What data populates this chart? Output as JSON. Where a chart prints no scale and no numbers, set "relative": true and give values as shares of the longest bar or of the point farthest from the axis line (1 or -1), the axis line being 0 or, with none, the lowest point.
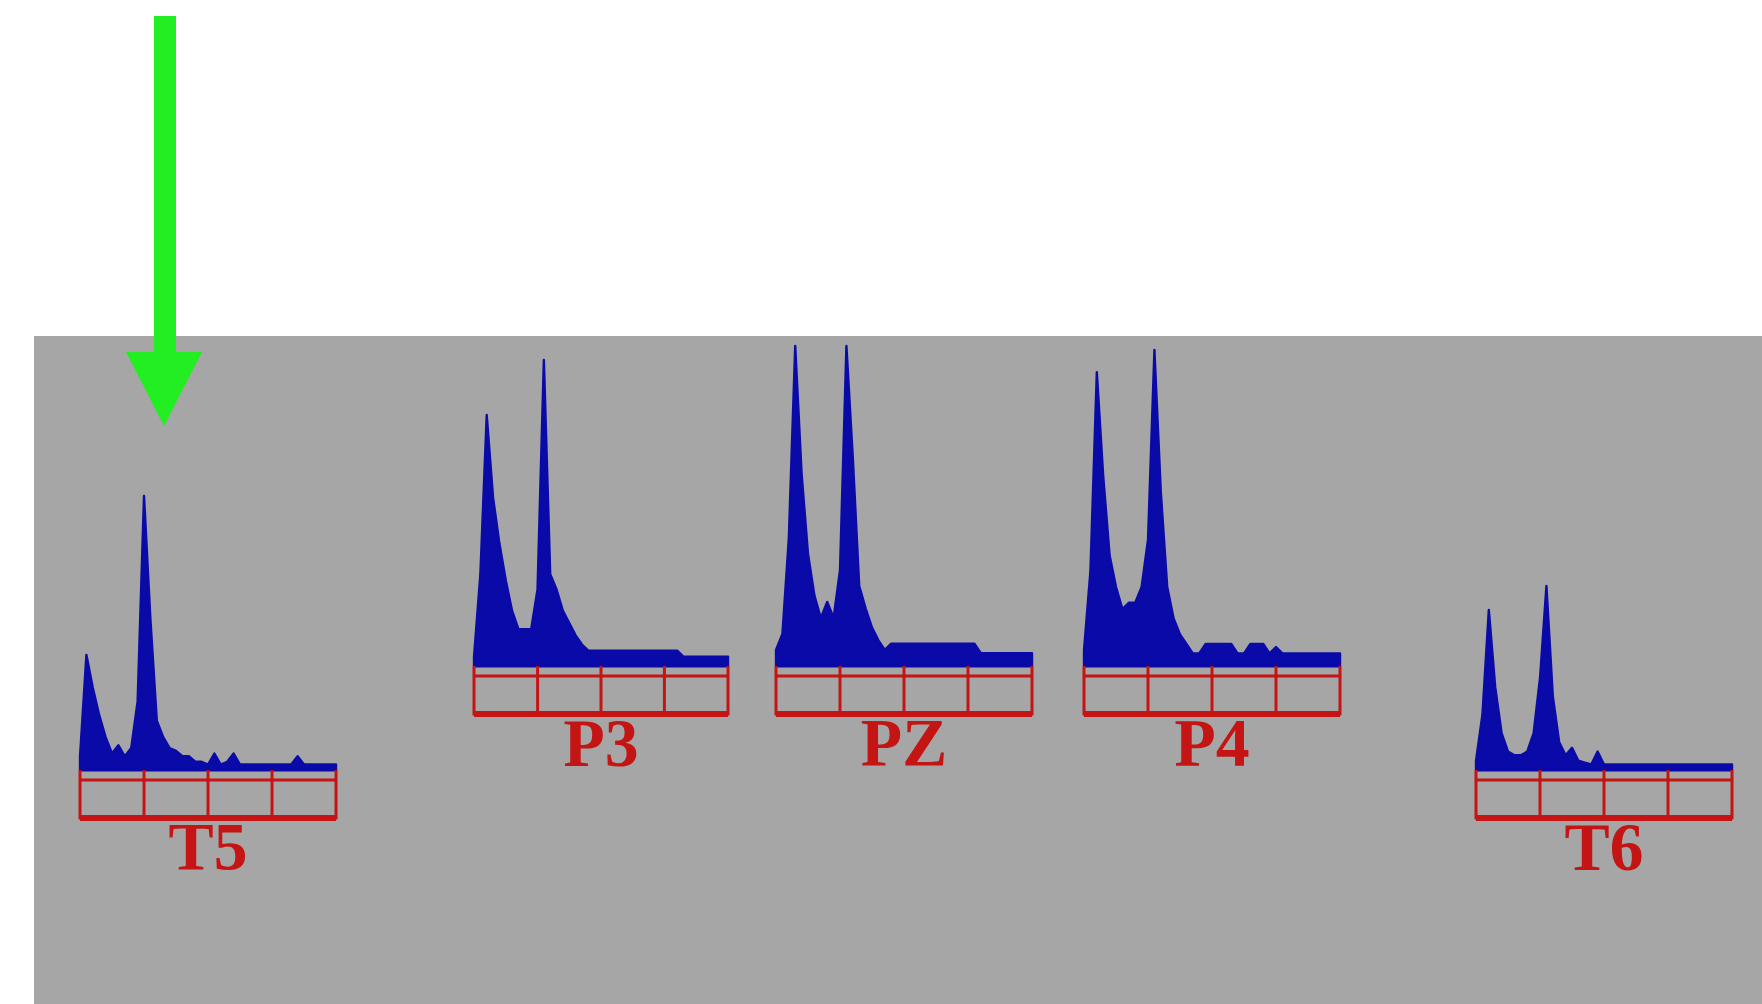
{
  "chart_data": [
    {
      "type": "area",
      "title": "T5",
      "relative": true,
      "color": "#0a0aa8",
      "categories": [
        null,
        null,
        null,
        null,
        null,
        null,
        null,
        null,
        null,
        null,
        null,
        null,
        null,
        null,
        null,
        null,
        null,
        null,
        null,
        null,
        null,
        null,
        null,
        null,
        null,
        null,
        null,
        null,
        null,
        null,
        null,
        null,
        null,
        null,
        null,
        null,
        null,
        null,
        null,
        null,
        null
      ],
      "values": [
        0.05,
        0.42,
        0.3,
        0.2,
        0.12,
        0.06,
        0.09,
        0.05,
        0.08,
        0.25,
        1.0,
        0.55,
        0.18,
        0.12,
        0.08,
        0.07,
        0.05,
        0.05,
        0.03,
        0.03,
        0.02,
        0.06,
        0.02,
        0.03,
        0.06,
        0.02,
        0.02,
        0.02,
        0.02,
        0.02,
        0.02,
        0.02,
        0.02,
        0.02,
        0.05,
        0.02,
        0.02,
        0.02,
        0.02,
        0.02,
        0.02
      ]
    },
    {
      "type": "area",
      "title": "P3",
      "relative": true,
      "color": "#0a0aa8",
      "categories": [
        null,
        null,
        null,
        null,
        null,
        null,
        null,
        null,
        null,
        null,
        null,
        null,
        null,
        null,
        null,
        null,
        null,
        null,
        null,
        null,
        null,
        null,
        null,
        null,
        null,
        null,
        null,
        null,
        null,
        null,
        null,
        null,
        null,
        null,
        null,
        null,
        null,
        null,
        null,
        null,
        null
      ],
      "values": [
        0.03,
        0.3,
        0.82,
        0.55,
        0.4,
        0.28,
        0.18,
        0.12,
        0.12,
        0.12,
        0.25,
        1.0,
        0.3,
        0.25,
        0.18,
        0.14,
        0.1,
        0.07,
        0.05,
        0.05,
        0.05,
        0.05,
        0.05,
        0.05,
        0.05,
        0.05,
        0.05,
        0.05,
        0.05,
        0.05,
        0.05,
        0.05,
        0.05,
        0.03,
        0.03,
        0.03,
        0.03,
        0.03,
        0.03,
        0.03,
        0.03
      ]
    },
    {
      "type": "area",
      "title": "PZ",
      "relative": true,
      "color": "#0a0aa8",
      "categories": [
        null,
        null,
        null,
        null,
        null,
        null,
        null,
        null,
        null,
        null,
        null,
        null,
        null,
        null,
        null,
        null,
        null,
        null,
        null,
        null,
        null,
        null,
        null,
        null,
        null,
        null,
        null,
        null,
        null,
        null,
        null,
        null,
        null,
        null,
        null,
        null,
        null,
        null,
        null,
        null,
        null
      ],
      "values": [
        0.05,
        0.1,
        0.4,
        1.0,
        0.6,
        0.35,
        0.22,
        0.15,
        0.2,
        0.15,
        0.3,
        1.0,
        0.65,
        0.25,
        0.18,
        0.12,
        0.08,
        0.05,
        0.07,
        0.07,
        0.07,
        0.07,
        0.07,
        0.07,
        0.07,
        0.07,
        0.07,
        0.07,
        0.07,
        0.07,
        0.07,
        0.07,
        0.04,
        0.04,
        0.04,
        0.04,
        0.04,
        0.04,
        0.04,
        0.04,
        0.04
      ]
    },
    {
      "type": "area",
      "title": "P4",
      "relative": true,
      "color": "#0a0aa8",
      "categories": [
        null,
        null,
        null,
        null,
        null,
        null,
        null,
        null,
        null,
        null,
        null,
        null,
        null,
        null,
        null,
        null,
        null,
        null,
        null,
        null,
        null,
        null,
        null,
        null,
        null,
        null,
        null,
        null,
        null,
        null,
        null,
        null,
        null,
        null,
        null,
        null,
        null,
        null,
        null,
        null,
        null
      ],
      "values": [
        0.05,
        0.3,
        0.93,
        0.6,
        0.35,
        0.25,
        0.18,
        0.2,
        0.2,
        0.25,
        0.4,
        1.0,
        0.55,
        0.25,
        0.15,
        0.1,
        0.07,
        0.04,
        0.04,
        0.07,
        0.07,
        0.07,
        0.07,
        0.07,
        0.04,
        0.04,
        0.07,
        0.07,
        0.07,
        0.04,
        0.06,
        0.04,
        0.04,
        0.04,
        0.04,
        0.04,
        0.04,
        0.04,
        0.04,
        0.04,
        0.04
      ]
    },
    {
      "type": "area",
      "title": "T6",
      "relative": true,
      "color": "#0a0aa8",
      "categories": [
        null,
        null,
        null,
        null,
        null,
        null,
        null,
        null,
        null,
        null,
        null,
        null,
        null,
        null,
        null,
        null,
        null,
        null,
        null,
        null,
        null,
        null,
        null,
        null,
        null,
        null,
        null,
        null,
        null,
        null,
        null,
        null,
        null,
        null,
        null,
        null,
        null,
        null,
        null,
        null,
        null
      ],
      "values": [
        0.05,
        0.3,
        0.87,
        0.45,
        0.2,
        0.1,
        0.08,
        0.08,
        0.1,
        0.2,
        0.5,
        1.0,
        0.4,
        0.15,
        0.08,
        0.12,
        0.05,
        0.04,
        0.03,
        0.1,
        0.03,
        0.03,
        0.03,
        0.03,
        0.03,
        0.03,
        0.03,
        0.03,
        0.03,
        0.03,
        0.03,
        0.03,
        0.03,
        0.03,
        0.03,
        0.03,
        0.03,
        0.03,
        0.03,
        0.03,
        0.03
      ]
    }
  ]
}
